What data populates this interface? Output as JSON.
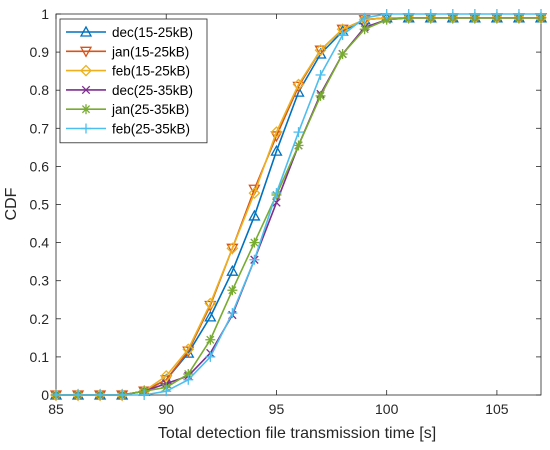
{
  "chart_data": {
    "type": "line",
    "title": "",
    "xlabel": "Total detection file transmission time [s]",
    "ylabel": "CDF",
    "xlim": [
      85,
      107
    ],
    "ylim": [
      0,
      1
    ],
    "xticks": [
      85,
      90,
      95,
      100,
      105
    ],
    "yticks": [
      0,
      0.1,
      0.2,
      0.3,
      0.4,
      0.5,
      0.6,
      0.7,
      0.8,
      0.9,
      1
    ],
    "grid": false,
    "legend_position": "top-left",
    "x": [
      85,
      86,
      87,
      88,
      89,
      90,
      91,
      92,
      93,
      94,
      95,
      96,
      97,
      98,
      99,
      100,
      101,
      102,
      103,
      104,
      105,
      106,
      107
    ],
    "series": [
      {
        "name": "dec(15-25kB)",
        "color": "#0072BD",
        "marker": "triangle-up",
        "values": [
          0,
          0,
          0,
          0,
          0.01,
          0.04,
          0.11,
          0.205,
          0.325,
          0.47,
          0.64,
          0.795,
          0.895,
          0.955,
          0.985,
          0.99,
          0.99,
          0.99,
          0.99,
          0.99,
          0.99,
          0.99,
          0.99
        ]
      },
      {
        "name": "jan(15-25kB)",
        "color": "#D95319",
        "marker": "triangle-down",
        "values": [
          0,
          0,
          0,
          0,
          0.01,
          0.04,
          0.115,
          0.235,
          0.385,
          0.54,
          0.68,
          0.81,
          0.905,
          0.96,
          0.985,
          0.99,
          0.99,
          0.99,
          0.99,
          0.99,
          0.99,
          0.99,
          0.99
        ]
      },
      {
        "name": "feb(15-25kB)",
        "color": "#EDB120",
        "marker": "diamond",
        "values": [
          0,
          0,
          0,
          0,
          0.01,
          0.05,
          0.12,
          0.24,
          0.385,
          0.53,
          0.69,
          0.815,
          0.905,
          0.96,
          0.985,
          0.99,
          0.99,
          0.99,
          0.99,
          0.99,
          0.99,
          0.99,
          0.99
        ]
      },
      {
        "name": "dec(25-35kB)",
        "color": "#7E2F8E",
        "marker": "x",
        "values": [
          0,
          0,
          0,
          0,
          0.01,
          0.03,
          0.05,
          0.11,
          0.21,
          0.355,
          0.505,
          0.655,
          0.79,
          0.895,
          0.965,
          0.985,
          0.99,
          0.99,
          0.99,
          0.99,
          0.99,
          0.99,
          0.99
        ]
      },
      {
        "name": "jan(25-35kB)",
        "color": "#77AC30",
        "marker": "asterisk",
        "values": [
          0,
          0,
          0,
          0,
          0.01,
          0.02,
          0.055,
          0.145,
          0.275,
          0.4,
          0.525,
          0.655,
          0.785,
          0.895,
          0.96,
          0.985,
          0.99,
          0.99,
          0.99,
          0.99,
          0.99,
          0.99,
          0.99
        ]
      },
      {
        "name": "feb(25-35kB)",
        "color": "#4DBEEE",
        "marker": "plus",
        "values": [
          0,
          0,
          0,
          0,
          0,
          0.01,
          0.04,
          0.1,
          0.215,
          0.355,
          0.53,
          0.69,
          0.84,
          0.945,
          0.99,
          1,
          1,
          1,
          1,
          1,
          1,
          1,
          1
        ]
      }
    ]
  }
}
